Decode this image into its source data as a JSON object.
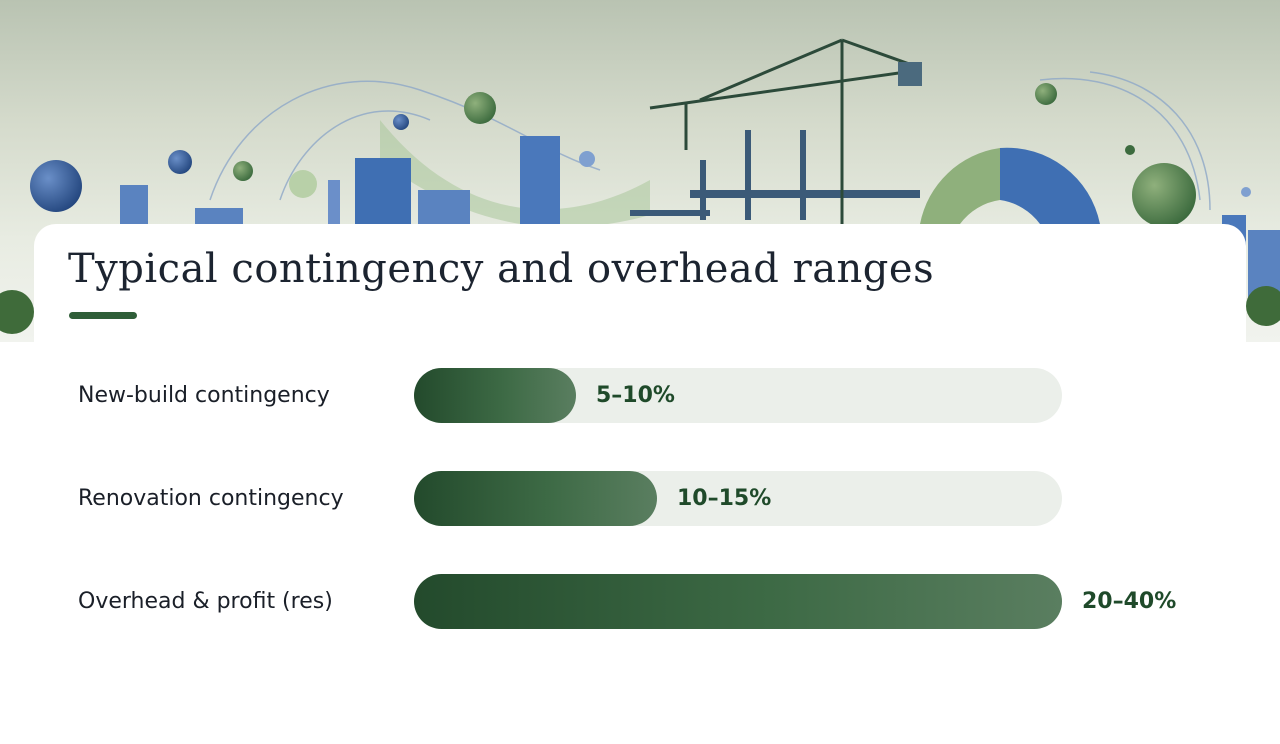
{
  "slide": {
    "title": "Typical contingency and overhead ranges"
  },
  "chart_data": {
    "type": "bar",
    "orientation": "horizontal",
    "title": "Typical contingency and overhead ranges",
    "categories": [
      "New-build contingency",
      "Renovation contingency",
      "Overhead & profit (res)"
    ],
    "labels": [
      "5–10%",
      "10–15%",
      "20–40%"
    ],
    "range_low": [
      5,
      10,
      20
    ],
    "range_high": [
      10,
      15,
      40
    ],
    "values": [
      10,
      15,
      40
    ],
    "xlim": [
      0,
      40
    ],
    "grid": false,
    "colors": {
      "bar": "#2f5e38",
      "track": "#ebefea",
      "label": "#1f4a2a"
    }
  }
}
